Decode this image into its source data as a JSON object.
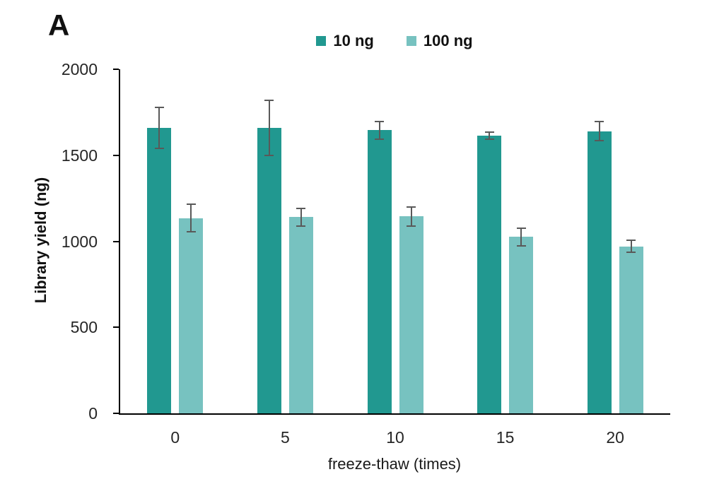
{
  "panel_label": "A",
  "chart_data": {
    "type": "bar",
    "title": "",
    "xlabel": "freeze-thaw (times)",
    "ylabel": "Library yield (ng)",
    "categories": [
      "0",
      "5",
      "10",
      "15",
      "20"
    ],
    "series": [
      {
        "name": "10 ng",
        "color": "#219890",
        "values": [
          1660,
          1660,
          1645,
          1615,
          1640
        ],
        "errors": [
          120,
          160,
          50,
          20,
          55
        ]
      },
      {
        "name": "100 ng",
        "color": "#77C2C0",
        "values": [
          1135,
          1140,
          1145,
          1025,
          970
        ],
        "errors": [
          80,
          50,
          55,
          50,
          35
        ]
      }
    ],
    "ylim": [
      0,
      2000
    ],
    "y_ticks": [
      0,
      500,
      1000,
      1500,
      2000
    ],
    "grid": false,
    "legend_position": "top-center",
    "error_bar_color": "#595959",
    "axis_color": "#000000"
  }
}
